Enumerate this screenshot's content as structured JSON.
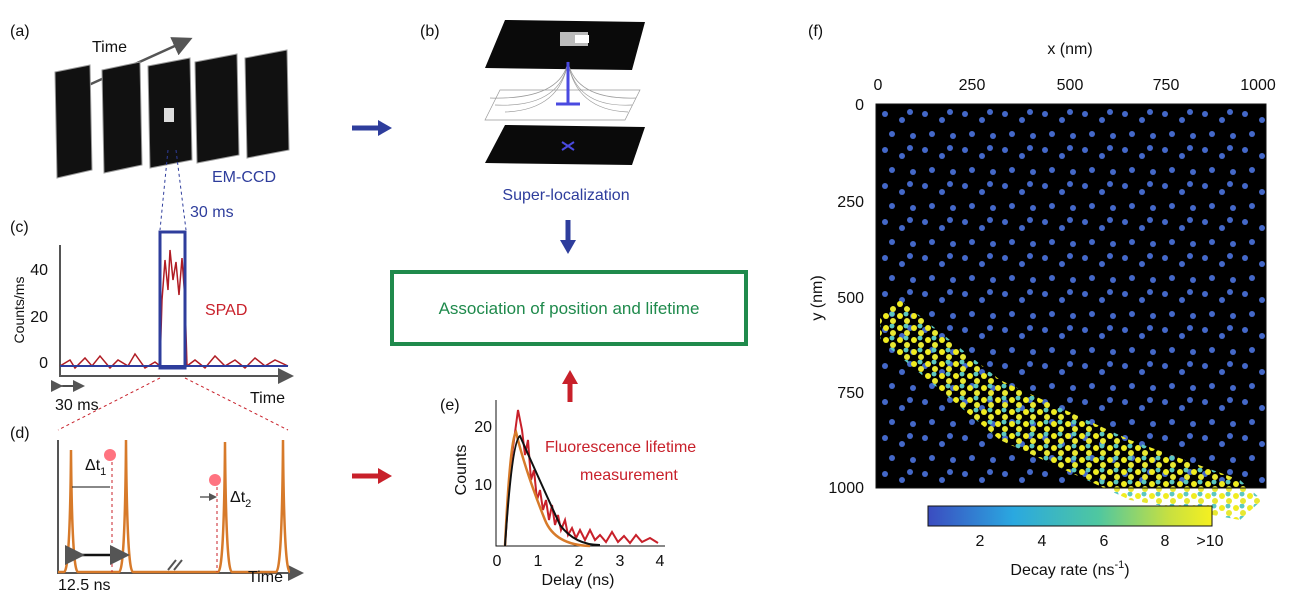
{
  "panels": {
    "a": {
      "label": "(a)",
      "axis_label": "Time",
      "detector": "EM-CCD",
      "exposure": "30 ms"
    },
    "b": {
      "label": "(b)",
      "caption": "Super-localization"
    },
    "association": "Association of position and lifetime",
    "c": {
      "label": "(c)",
      "y_axis": "Counts/ms",
      "yticks": [
        "40",
        "20",
        "0"
      ],
      "trace": "SPAD",
      "scale": "30 ms",
      "x_axis": "Time"
    },
    "d": {
      "label": "(d)",
      "dt1": {
        "symbol": "Δt",
        "subscript": "1"
      },
      "dt2": {
        "symbol": "Δt",
        "subscript": "2"
      },
      "period": "12.5 ns",
      "x_axis": "Time"
    },
    "e": {
      "label": "(e)",
      "y_axis": "Counts",
      "yticks": [
        "20",
        "10"
      ],
      "xticks": [
        "0",
        "1",
        "2",
        "3",
        "4"
      ],
      "x_axis": "Delay (ns)",
      "caption_line1": "Fluorescence lifetime",
      "caption_line2": "measurement"
    },
    "f": {
      "label": "(f)",
      "x_axis": "x (nm)",
      "y_axis": "y (nm)",
      "xticks": [
        "0",
        "250",
        "500",
        "750",
        "1000"
      ],
      "yticks": [
        "0",
        "250",
        "500",
        "750",
        "1000"
      ],
      "colorbar_ticks": [
        "2",
        "4",
        "6",
        "8",
        ">10"
      ],
      "colorbar_label": {
        "text": "Decay rate (ns",
        "superscript": "-1",
        "close": ")"
      }
    }
  }
}
